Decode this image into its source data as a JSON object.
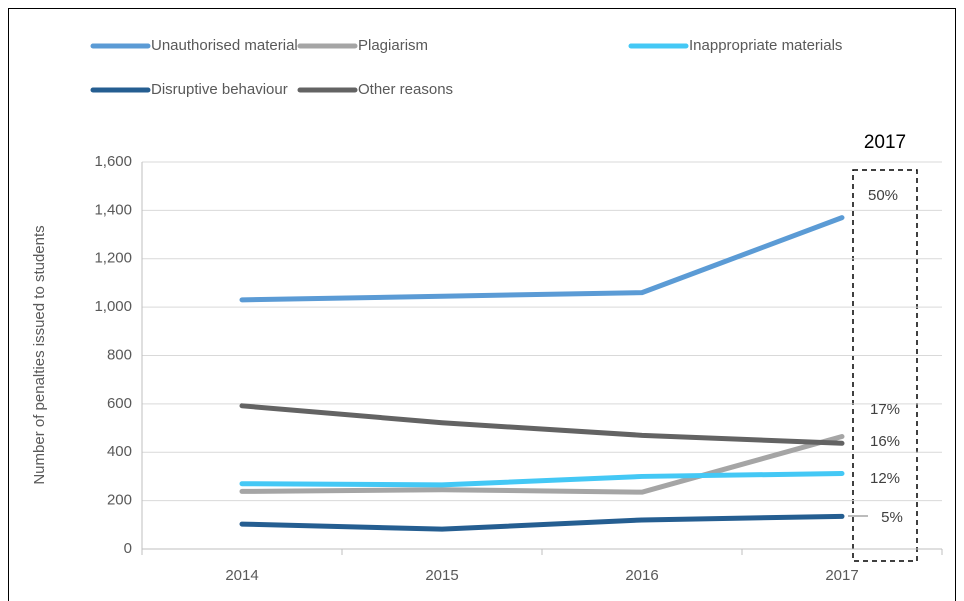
{
  "chart_data": {
    "type": "line",
    "y_label": "Number of penalties issued to students",
    "categories": [
      "2014",
      "2015",
      "2016",
      "2017"
    ],
    "series": [
      {
        "name": "Unauthorised material",
        "color": "#5b9bd5",
        "values": [
          1030,
          1045,
          1060,
          1370
        ]
      },
      {
        "name": "Plagiarism",
        "color": "#a5a5a5",
        "values": [
          238,
          245,
          235,
          465
        ]
      },
      {
        "name": "Inappropriate materials",
        "color": "#44c8f5",
        "values": [
          270,
          265,
          300,
          312
        ]
      },
      {
        "name": "Disruptive behaviour",
        "color": "#255e91",
        "values": [
          103,
          82,
          120,
          135
        ]
      },
      {
        "name": "Other reasons",
        "color": "#636363",
        "values": [
          592,
          522,
          470,
          437
        ]
      }
    ],
    "ylim": [
      0,
      1600
    ],
    "yticks": [
      0,
      200,
      400,
      600,
      800,
      {
        "value": 1000,
        "label": "1,000"
      },
      {
        "value": 1200,
        "label": "1,200"
      },
      {
        "value": 1400,
        "label": "1,400"
      },
      {
        "value": 1600,
        "label": "1,600"
      }
    ],
    "grid": true,
    "annotations": [
      "2017",
      "50%",
      "17%",
      "16%",
      "12%",
      "5%"
    ]
  }
}
